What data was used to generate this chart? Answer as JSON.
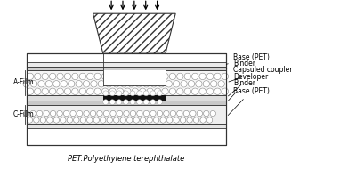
{
  "fig_width": 4.0,
  "fig_height": 1.9,
  "dpi": 100,
  "bg_color": "#ffffff",
  "line_color": "#333333",
  "font_size_label": 5.5,
  "font_size_note": 6.0,
  "bottom_note": "PET:Polyethylene terephthalate",
  "label_A_film": "A-Film",
  "label_C_film": "C-Film",
  "labels_right": [
    "Base (PET)",
    "Binder",
    "Capsuled coupler",
    "Developer",
    "Binder",
    "Base (PET)"
  ]
}
